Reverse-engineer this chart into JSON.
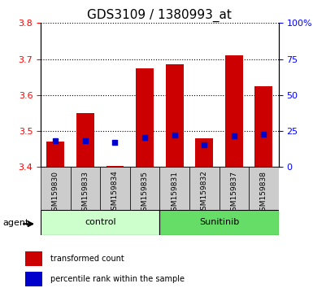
{
  "title": "GDS3109 / 1380993_at",
  "ylim_left": [
    3.4,
    3.8
  ],
  "ylim_right": [
    0,
    100
  ],
  "yticks_left": [
    3.4,
    3.5,
    3.6,
    3.7,
    3.8
  ],
  "yticks_right": [
    0,
    25,
    50,
    75,
    100
  ],
  "ytick_labels_right": [
    "0",
    "25",
    "50",
    "75",
    "100%"
  ],
  "bar_bottom": 3.4,
  "samples": [
    "GSM159830",
    "GSM159833",
    "GSM159834",
    "GSM159835",
    "GSM159831",
    "GSM159832",
    "GSM159837",
    "GSM159838"
  ],
  "bar_tops": [
    3.47,
    3.55,
    3.403,
    3.675,
    3.685,
    3.48,
    3.71,
    3.625
  ],
  "blue_marker_y": [
    3.473,
    3.473,
    3.468,
    3.482,
    3.488,
    3.462,
    3.487,
    3.492
  ],
  "bar_color": "#cc0000",
  "blue_color": "#0000cc",
  "control_label": "control",
  "sunitinib_label": "Sunitinib",
  "agent_label": "agent",
  "legend_red_label": "transformed count",
  "legend_blue_label": "percentile rank within the sample",
  "control_color": "#ccffcc",
  "sunitinib_color": "#66dd66",
  "xticklabel_bg": "#cccccc",
  "title_fontsize": 11,
  "bar_width": 0.6
}
